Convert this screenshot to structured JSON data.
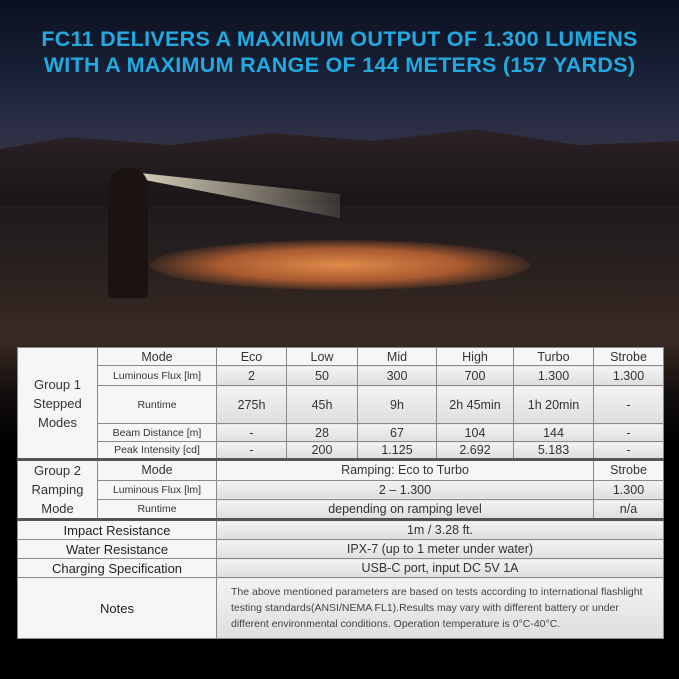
{
  "headline": {
    "line1": "FC11 DELIVERS A MAXIMUM OUTPUT OF 1.300 LUMENS",
    "line2": "WITH A MAXIMUM RANGE OF 144 METERS (157 YARDS)"
  },
  "accent_color": "#22a9e0",
  "group1": {
    "label_lines": [
      "Group 1",
      "Stepped",
      "Modes"
    ],
    "mode_label": "Mode",
    "modes": [
      "Eco",
      "Low",
      "Mid",
      "High",
      "Turbo",
      "Strobe"
    ],
    "rows": [
      {
        "label": "Luminous Flux [lm]",
        "values": [
          "2",
          "50",
          "300",
          "700",
          "1.300",
          "1.300"
        ]
      },
      {
        "label": "Runtime",
        "values": [
          "275h",
          "45h",
          "9h",
          "2h 45min",
          "1h 20min",
          "-"
        ]
      },
      {
        "label": "Beam Distance [m]",
        "values": [
          "-",
          "28",
          "67",
          "104",
          "144",
          "-"
        ]
      },
      {
        "label": "Peak Intensity [cd]",
        "values": [
          "-",
          "200",
          "1.125",
          "2.692",
          "5.183",
          "-"
        ]
      }
    ]
  },
  "group2": {
    "label_lines": [
      "Group  2",
      "Ramping",
      "Mode"
    ],
    "rows": [
      {
        "label": "Mode",
        "main": "Ramping: Eco to Turbo",
        "strobe": "Strobe"
      },
      {
        "label": "Luminous Flux [lm]",
        "main": "2 – 1.300",
        "strobe": "1.300"
      },
      {
        "label": "Runtime",
        "main": "depending on ramping level",
        "strobe": "n/a"
      }
    ]
  },
  "specs": [
    {
      "label": "Impact Resistance",
      "value": "1m / 3.28 ft."
    },
    {
      "label": "Water Resistance",
      "value": "IPX-7 (up to 1 meter under water)"
    },
    {
      "label": "Charging Specification",
      "value": "USB-C port, input DC 5V 1A"
    }
  ],
  "notes": {
    "label": "Notes",
    "text": "The above mentioned parameters are based on tests according to international flashlight testing standards(ANSI/NEMA FL1).Results may vary with different battery or under different environmental conditions. Operation temperature is 0°C-40°C."
  }
}
